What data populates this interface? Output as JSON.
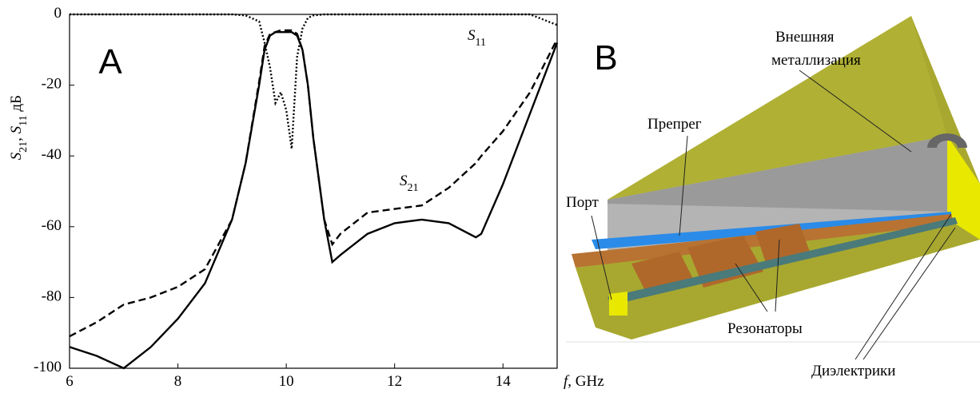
{
  "chart_data": {
    "type": "line",
    "panel": "A",
    "xlabel": "f, GHz",
    "ylabel": "S21, S11 дБ",
    "x": [
      6,
      6.5,
      7,
      7.5,
      8,
      8.5,
      9,
      9.25,
      9.5,
      9.6,
      9.7,
      9.8,
      9.9,
      10,
      10.1,
      10.2,
      10.3,
      10.4,
      10.5,
      10.7,
      10.85,
      11,
      11.5,
      12,
      12.5,
      13,
      13.5,
      13.6,
      14,
      14.5,
      15
    ],
    "series": [
      {
        "color": "#000000",
        "style": "dotted",
        "values": [
          0,
          0,
          0,
          0,
          0,
          0,
          0,
          -0.3,
          -2,
          -8,
          -15,
          -25,
          -22,
          -27,
          -38,
          -12,
          -4,
          -1,
          -0.3,
          0,
          0,
          0,
          0,
          0,
          0,
          0,
          0,
          0,
          0,
          0,
          -3
        ]
      },
      {
        "color": "#000000",
        "style": "solid",
        "values": [
          -94,
          -96.5,
          -100,
          -94,
          -86,
          -76,
          -58,
          -42,
          -20,
          -10,
          -6,
          -5,
          -5,
          -5,
          -5,
          -6,
          -10,
          -20,
          -35,
          -58,
          -70,
          -68,
          -62,
          -59,
          -58,
          -59,
          -63,
          -62,
          -48,
          -28,
          -8
        ]
      },
      {
        "color": "#000000",
        "style": "dashed",
        "values": [
          -91,
          -87,
          -82,
          -80,
          -77,
          -72,
          -58,
          -42,
          -19,
          -9,
          -5.5,
          -5,
          -4.5,
          -4.5,
          -4.5,
          -5.5,
          -10,
          -20,
          -35,
          -58,
          -65,
          -62,
          -56,
          -55,
          -54,
          -49,
          -42,
          -40,
          -33,
          -22,
          -7
        ]
      }
    ],
    "annotations": [
      "S11",
      "S21"
    ],
    "xlim": [
      6,
      15
    ],
    "xticks": [
      6,
      8,
      10,
      12,
      14
    ],
    "ylim": [
      -100,
      0
    ],
    "yticks": [
      0,
      -20,
      -40,
      -60,
      -80,
      -100
    ]
  },
  "diagram": {
    "panel": "B",
    "labels": [
      "Внешняя",
      "металлизация",
      "Препрег",
      "Порт",
      "Резонаторы",
      "Диэлектрики"
    ]
  }
}
